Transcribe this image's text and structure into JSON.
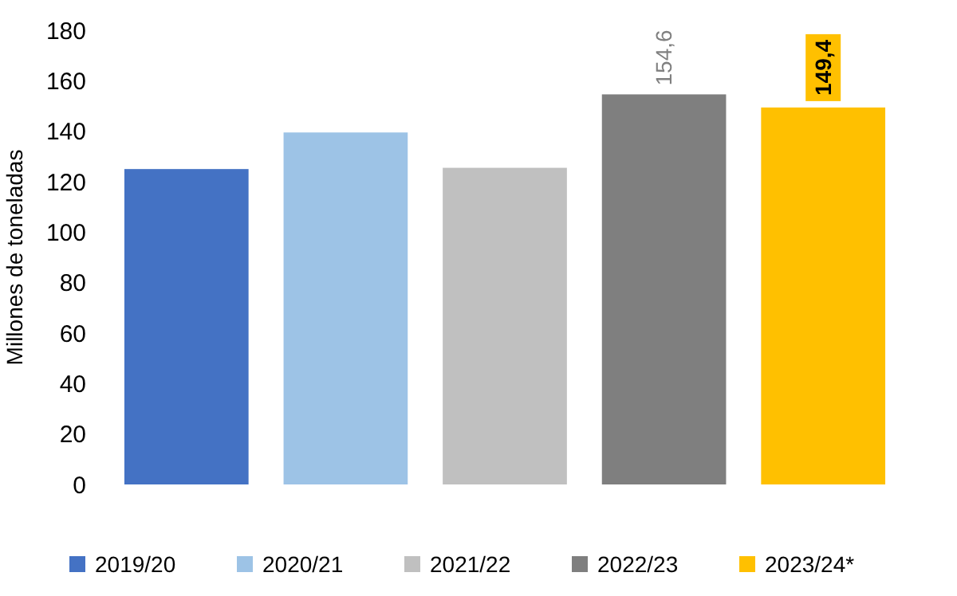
{
  "chart_data": {
    "type": "bar",
    "ylabel": "Millones de toneladas",
    "stacked": true,
    "categories": [
      null,
      null,
      null,
      null,
      null
    ],
    "series": [
      {
        "name": "2019/20",
        "color": "#4472c4",
        "values": [
          125,
          null,
          null,
          null,
          null
        ]
      },
      {
        "name": "2020/21",
        "color": "#9dc3e6",
        "values": [
          null,
          139.5,
          null,
          null,
          null
        ]
      },
      {
        "name": "2021/22",
        "color": "#c0c0c0",
        "values": [
          null,
          null,
          125.5,
          null,
          null
        ]
      },
      {
        "name": "2022/23",
        "color": "#7f7f7f",
        "values": [
          null,
          null,
          null,
          154.6,
          null
        ],
        "value_labels": [
          null,
          null,
          null,
          "154,6",
          null
        ]
      },
      {
        "name": "2023/24*",
        "color": "#ffc000",
        "values": [
          null,
          null,
          null,
          null,
          149.4
        ],
        "value_labels": [
          null,
          null,
          null,
          null,
          "149,4"
        ]
      }
    ],
    "ylim": [
      0,
      180
    ],
    "yticks": [
      0,
      20,
      40,
      60,
      80,
      100,
      120,
      140,
      160,
      180
    ],
    "tick_labels": "y",
    "legend": "bottom",
    "grid": false
  }
}
